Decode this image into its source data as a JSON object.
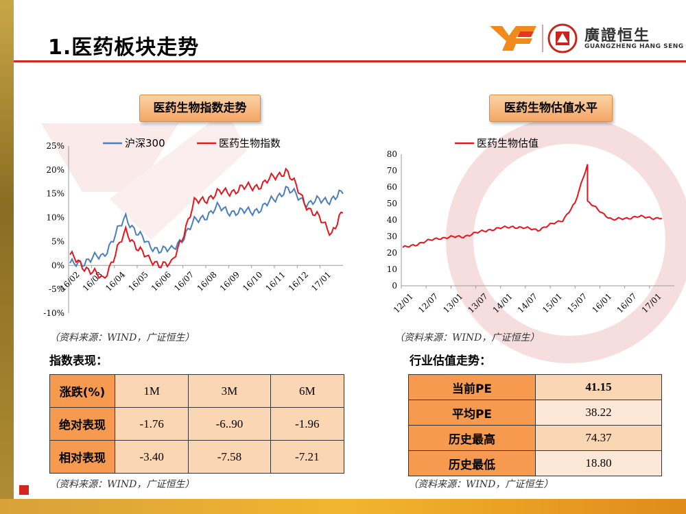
{
  "title": "1.医药板块走势",
  "logo": {
    "name": "廣證恒生",
    "sub": "GUANGZHENG HANG SENG"
  },
  "left_heading": "医药生物指数走势",
  "right_heading": "医药生物估值水平",
  "source_text": "（资料来源：WIND，广证恒生）",
  "left_sub": "指数表现：",
  "right_sub": "行业估值走势：",
  "colors": {
    "hs300": "#4a7ebb",
    "pharma": "#e8131b",
    "accent": "#d4261c",
    "header_cell": "#f59a4f"
  },
  "chart_data": [
    {
      "type": "line",
      "legend": [
        "沪深300",
        "医药生物指数"
      ],
      "legend_position": "top",
      "x_ticks": [
        "16/02",
        "16/03",
        "16/04",
        "16/05",
        "16/06",
        "16/07",
        "16/08",
        "16/09",
        "16/10",
        "16/11",
        "16/12",
        "17/01"
      ],
      "y_ticks": [
        "25%",
        "20%",
        "15%",
        "10%",
        "5%",
        "0%",
        "-5%",
        "-10%"
      ],
      "ylim": [
        -10,
        25
      ],
      "series": [
        {
          "name": "沪深300",
          "x": [
            "16/02",
            "16/03",
            "16/04",
            "16/05",
            "16/06",
            "16/07",
            "16/08",
            "16/09",
            "16/10",
            "16/11",
            "16/12",
            "17/01",
            "17/01"
          ],
          "values": [
            0,
            2,
            10,
            4,
            3,
            9,
            12,
            11,
            12,
            16,
            13,
            14,
            15
          ]
        },
        {
          "name": "医药生物指数",
          "x": [
            "16/02",
            "16/03",
            "16/04",
            "16/05",
            "16/06",
            "16/07",
            "16/08",
            "16/09",
            "16/10",
            "16/11",
            "16/12",
            "17/01",
            "17/01"
          ],
          "values": [
            2,
            -3,
            7,
            1,
            0,
            13,
            15,
            16,
            17,
            20,
            12,
            7,
            11
          ]
        }
      ]
    },
    {
      "type": "line",
      "legend": [
        "医药生物估值"
      ],
      "legend_position": "top",
      "x_ticks": [
        "12/01",
        "12/07",
        "13/01",
        "13/07",
        "14/01",
        "14/07",
        "15/01",
        "15/07",
        "16/01",
        "16/07",
        "17/01"
      ],
      "y_ticks": [
        "80",
        "70",
        "60",
        "50",
        "40",
        "30",
        "20",
        "10",
        "0"
      ],
      "ylim": [
        0,
        80
      ],
      "series": [
        {
          "name": "医药生物估值",
          "x": [
            "12/01",
            "12/07",
            "13/01",
            "13/07",
            "14/01",
            "14/07",
            "15/01",
            "15/05",
            "15/06",
            "15/07",
            "16/01",
            "16/07",
            "17/01"
          ],
          "values": [
            23,
            29,
            30,
            34,
            36,
            34,
            40,
            50,
            74,
            51,
            40,
            42,
            41
          ]
        }
      ]
    }
  ],
  "perf_table": {
    "header": [
      "涨跌(%)",
      "1M",
      "3M",
      "6M"
    ],
    "rows": [
      {
        "label": "绝对表现",
        "values": [
          "-1.76",
          "-6..90",
          "-1.96"
        ]
      },
      {
        "label": "相对表现",
        "values": [
          "-3.40",
          "-7.58",
          "-7.21"
        ]
      }
    ]
  },
  "pe_table": [
    {
      "label": "当前PE",
      "value": "41.15"
    },
    {
      "label": "平均PE",
      "value": "38.22"
    },
    {
      "label": "历史最高",
      "value": "74.37"
    },
    {
      "label": "历史最低",
      "value": "18.80"
    }
  ]
}
